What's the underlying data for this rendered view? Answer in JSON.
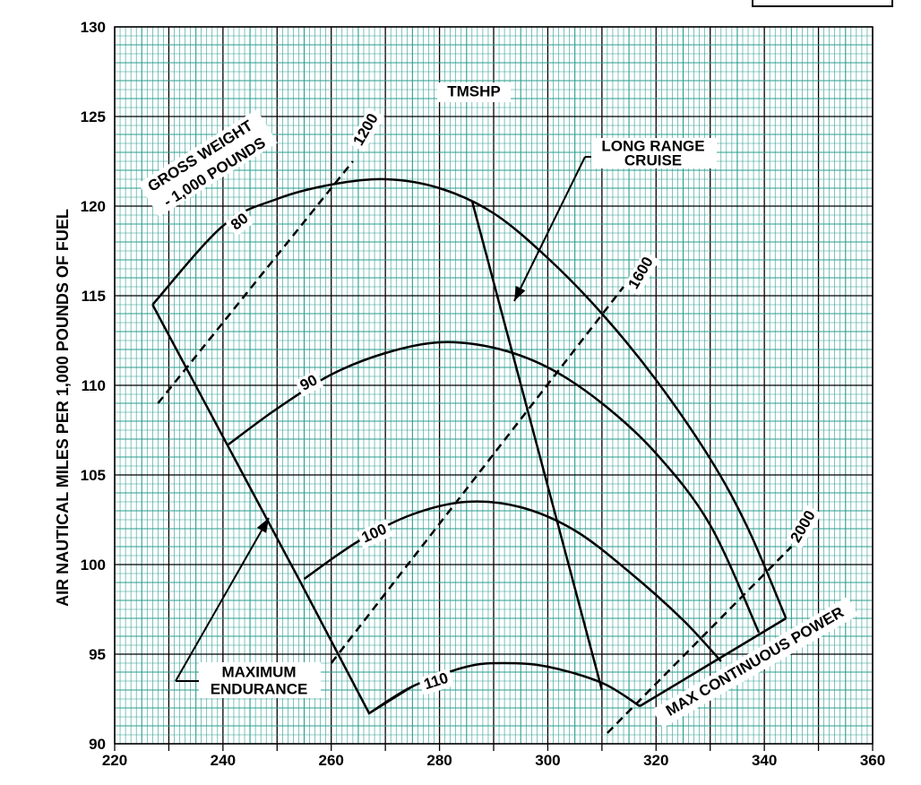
{
  "chart_data": {
    "type": "line",
    "title": "TMSHP",
    "ylabel": "AIR NAUTICAL MILES PER 1,000 POUNDS OF FUEL",
    "xlabel": "",
    "xlim": [
      220,
      360
    ],
    "ylim": [
      90,
      130
    ],
    "x_ticks": [
      "220",
      "240",
      "260",
      "280",
      "300",
      "320",
      "340",
      "360"
    ],
    "y_ticks": [
      "90",
      "95",
      "100",
      "105",
      "110",
      "115",
      "120",
      "125",
      "130"
    ],
    "grid": true,
    "series": [
      {
        "name": "80",
        "style": "solid",
        "points": [
          [
            227,
            114.5
          ],
          [
            240,
            118.9
          ],
          [
            250,
            120.4
          ],
          [
            260,
            121.2
          ],
          [
            270,
            121.5
          ],
          [
            280,
            121.0
          ],
          [
            290,
            119.6
          ],
          [
            300,
            117.1
          ],
          [
            310,
            114.0
          ],
          [
            320,
            110.3
          ],
          [
            330,
            105.9
          ],
          [
            337,
            102.0
          ],
          [
            344,
            97.0
          ]
        ]
      },
      {
        "name": "90",
        "style": "solid",
        "points": [
          [
            241,
            106.7
          ],
          [
            250,
            108.7
          ],
          [
            260,
            110.6
          ],
          [
            270,
            111.8
          ],
          [
            280,
            112.4
          ],
          [
            290,
            112.1
          ],
          [
            300,
            111.0
          ],
          [
            310,
            109.0
          ],
          [
            320,
            106.2
          ],
          [
            330,
            102.2
          ],
          [
            339,
            96.2
          ]
        ]
      },
      {
        "name": "100",
        "style": "solid",
        "points": [
          [
            255,
            99.2
          ],
          [
            265,
            101.3
          ],
          [
            275,
            102.8
          ],
          [
            285,
            103.5
          ],
          [
            295,
            103.2
          ],
          [
            305,
            101.9
          ],
          [
            315,
            99.6
          ],
          [
            325,
            96.9
          ],
          [
            332,
            94.6
          ]
        ]
      },
      {
        "name": "110",
        "style": "solid",
        "points": [
          [
            267,
            91.7
          ],
          [
            275,
            93.2
          ],
          [
            285,
            94.3
          ],
          [
            292,
            94.5
          ],
          [
            300,
            94.3
          ],
          [
            310,
            93.4
          ],
          [
            317,
            92.1
          ]
        ]
      },
      {
        "name": "",
        "style": "solid",
        "points": [
          [
            227,
            114.5
          ],
          [
            254,
            99.2
          ],
          [
            267,
            91.7
          ],
          [
            275,
            93.2
          ]
        ]
      },
      {
        "name": "",
        "style": "solid",
        "points": [
          [
            286,
            120.3
          ],
          [
            310,
            93.0
          ]
        ]
      },
      {
        "name": "",
        "style": "solid",
        "points": [
          [
            317,
            92.1
          ],
          [
            344,
            97.0
          ]
        ]
      },
      {
        "name": "1200",
        "style": "dashed",
        "points": [
          [
            228,
            109.0
          ],
          [
            264,
            122.5
          ]
        ]
      },
      {
        "name": "1600",
        "style": "dashed",
        "points": [
          [
            260,
            94.5
          ],
          [
            314,
            115.5
          ]
        ]
      },
      {
        "name": "2000",
        "style": "dashed",
        "points": [
          [
            311,
            90.6
          ],
          [
            345,
            101.0
          ]
        ]
      }
    ],
    "labels": {
      "gross_weight": "GROSS WEIGHT",
      "gross_weight_units": "- 1,000 POUNDS",
      "gw80": "80",
      "gw90": "90",
      "gw100": "100",
      "gw110": "110",
      "tq1200": "1200",
      "tq1600": "1600",
      "tq2000": "2000",
      "long_range_1": "LONG RANGE",
      "long_range_2": "CRUISE",
      "max_end_1": "MAXIMUM",
      "max_end_2": "ENDURANCE",
      "max_cont": "MAX CONTINUOUS POWER"
    },
    "grid_color": "#2a9d8f",
    "line_color": "#000000"
  }
}
